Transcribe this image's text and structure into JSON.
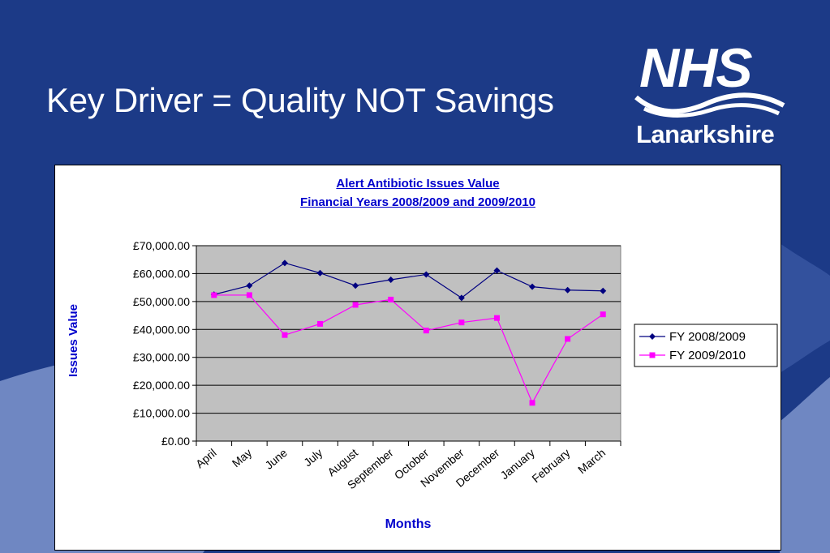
{
  "slide": {
    "title": "Key Driver = Quality NOT Savings"
  },
  "logo": {
    "main": "NHS",
    "sub": "Lanarkshire"
  },
  "colors": {
    "background": "#1c3a87",
    "plot_area": "#c0c0c0",
    "series1": "#000080",
    "series2": "#ff00ff",
    "title_text": "#0000cc"
  },
  "chart_data": {
    "type": "line",
    "title": "Alert Antibiotic Issues Value",
    "subtitle": "Financial Years 2008/2009 and 2009/2010",
    "xlabel": "Months",
    "ylabel": "Issues Value",
    "categories": [
      "April",
      "May",
      "June",
      "July",
      "August",
      "September",
      "October",
      "November",
      "December",
      "January",
      "February",
      "March"
    ],
    "ylim": [
      0,
      70000
    ],
    "yticks": [
      "£0.00",
      "£10,000.00",
      "£20,000.00",
      "£30,000.00",
      "£40,000.00",
      "£50,000.00",
      "£60,000.00",
      "£70,000.00"
    ],
    "grid": true,
    "legend_position": "right",
    "series": [
      {
        "name": "FY 2008/2009",
        "values": [
          52500,
          55700,
          63800,
          60200,
          55700,
          57800,
          59700,
          51300,
          61100,
          55300,
          54100,
          53800
        ]
      },
      {
        "name": "FY 2009/2010",
        "values": [
          52300,
          52300,
          38000,
          42000,
          48800,
          50700,
          39600,
          42500,
          44100,
          13700,
          36600,
          45400
        ]
      }
    ]
  }
}
